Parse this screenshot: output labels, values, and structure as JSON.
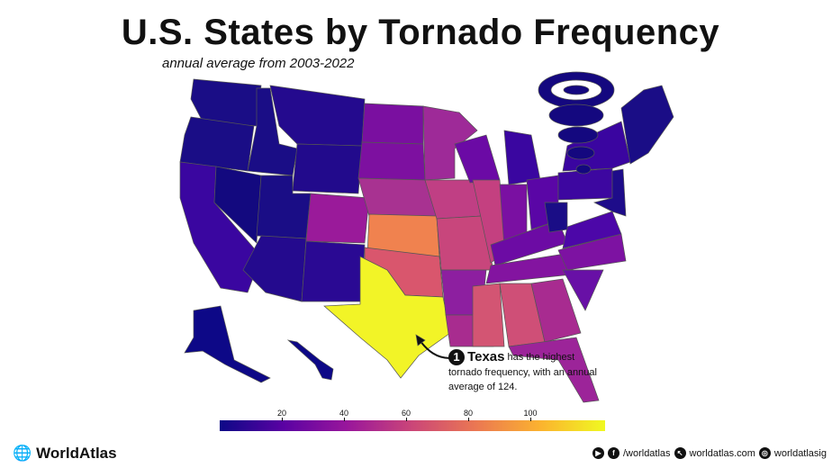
{
  "title": "U.S. States by Tornado Frequency",
  "subtitle": "annual average from 2003-2022",
  "callout": {
    "rank": "1",
    "state": "Texas",
    "text": "has the highest tornado frequency, with an annual average of 124."
  },
  "legend": {
    "ticks": [
      "20",
      "40",
      "60",
      "80",
      "100"
    ],
    "range": [
      0,
      124
    ],
    "colors": [
      "#0d0887",
      "#9a179b",
      "#eb7852",
      "#f0f921"
    ]
  },
  "footer": {
    "brand": "WorldAtlas",
    "facebook": "/worldatlas",
    "website": "worldatlas.com",
    "instagram": "worldatlasig"
  }
}
